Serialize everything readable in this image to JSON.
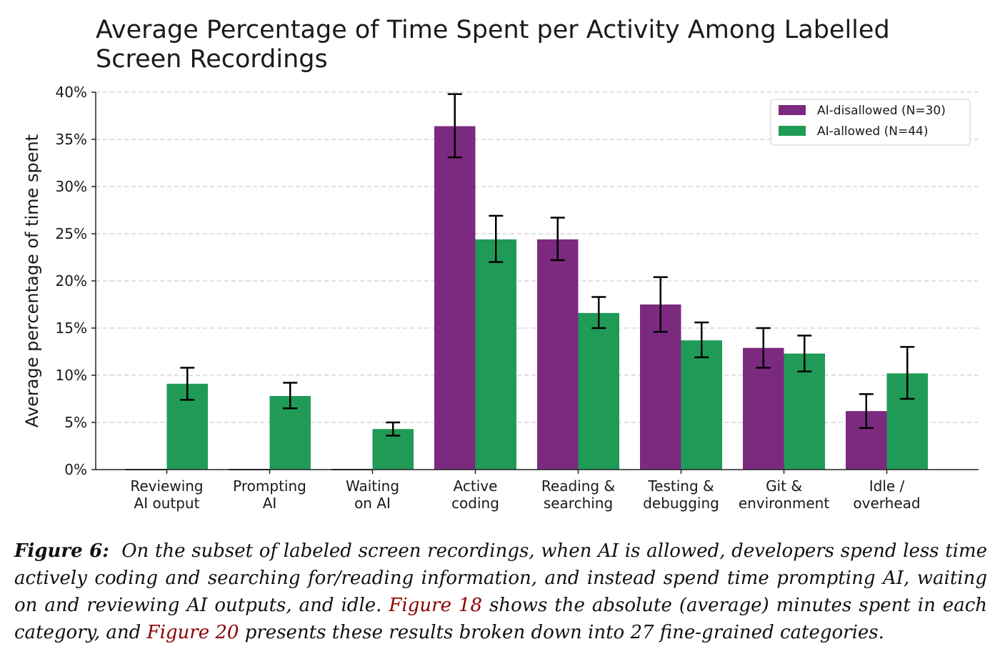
{
  "chart_data": {
    "type": "bar",
    "title": "Average Percentage of Time Spent per Activity Among Labelled Screen Recordings",
    "xlabel": "",
    "ylabel": "Average percentage of time spent",
    "ylim": [
      0,
      40
    ],
    "yticks": [
      "0%",
      "5%",
      "10%",
      "15%",
      "20%",
      "25%",
      "30%",
      "35%",
      "40%"
    ],
    "grid": "y-dashed",
    "legend_position": "top-right",
    "categories": [
      [
        "Reviewing",
        "AI output"
      ],
      [
        "Prompting",
        "AI"
      ],
      [
        "Waiting",
        "on AI"
      ],
      [
        "Active",
        "coding"
      ],
      [
        "Reading &",
        "searching"
      ],
      [
        "Testing &",
        "debugging"
      ],
      [
        "Git &",
        "environment"
      ],
      [
        "Idle /",
        "overhead"
      ]
    ],
    "series": [
      {
        "name": "AI-disallowed (N=30)",
        "color": "#7b2a80",
        "values": [
          0,
          0,
          0,
          36.4,
          24.4,
          17.5,
          12.9,
          6.2
        ],
        "err_low": [
          0,
          0,
          0,
          33.1,
          22.2,
          14.6,
          10.8,
          4.4
        ],
        "err_high": [
          0,
          0,
          0,
          39.8,
          26.7,
          20.4,
          15.0,
          8.0
        ]
      },
      {
        "name": "AI-allowed (N=44)",
        "color": "#1f9b57",
        "values": [
          9.1,
          7.8,
          4.3,
          24.4,
          16.6,
          13.7,
          12.3,
          10.2
        ],
        "err_low": [
          7.4,
          6.5,
          3.6,
          22.0,
          15.0,
          11.9,
          10.4,
          7.5
        ],
        "err_high": [
          10.8,
          9.2,
          5.0,
          26.9,
          18.3,
          15.6,
          14.2,
          13.0
        ]
      }
    ]
  },
  "caption": {
    "label": "Figure 6:",
    "text1": "On the subset of labeled screen recordings, when AI is allowed, developers spend less time actively coding and searching for/reading information, and instead spend time prompting AI, waiting on and reviewing AI outputs, and idle.",
    "ref1": "Figure 18",
    "text2": "shows the absolute (average) minutes spent in each category, and",
    "ref2": "Figure 20",
    "text3": "presents these results broken down into 27 fine-grained categories."
  }
}
